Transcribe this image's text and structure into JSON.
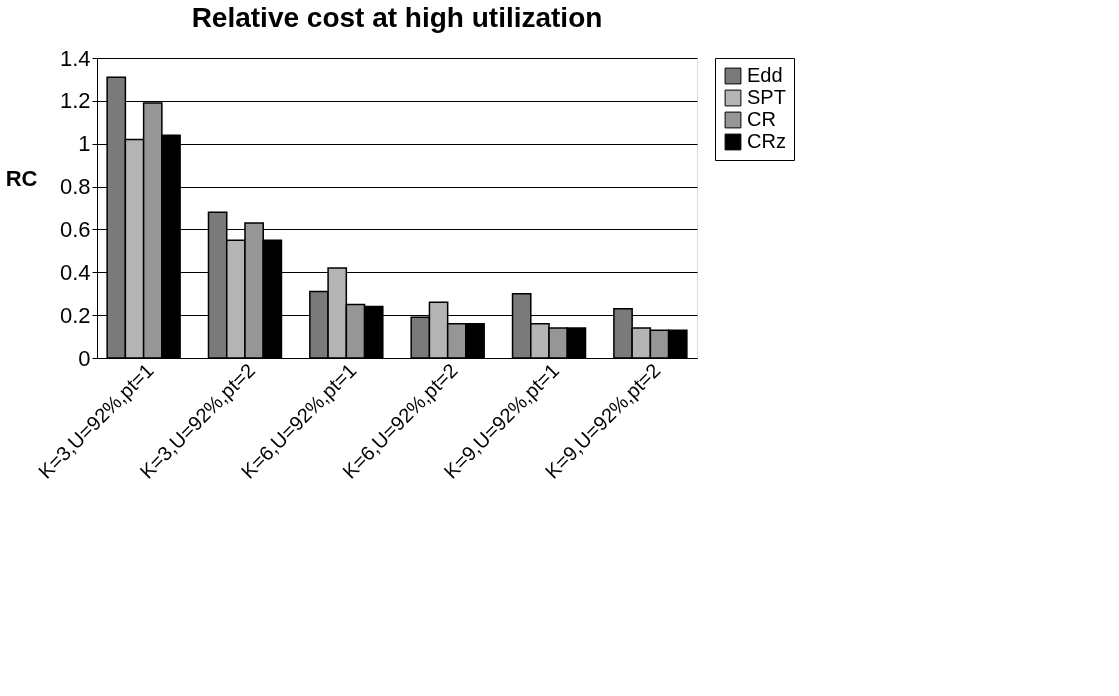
{
  "chart_data": {
    "type": "bar",
    "title": "Relative cost at high utilization",
    "ylabel": "RC",
    "categories": [
      "K=3,U=92%,pt=1",
      "K=3,U=92%,pt=2",
      "K=6,U=92%,pt=1",
      "K=6,U=92%,pt=2",
      "K=9,U=92%,pt=1",
      "K=9,U=92%,pt=2"
    ],
    "series": [
      {
        "name": "Edd",
        "color": "#7a7a7a",
        "values": [
          1.31,
          0.68,
          0.31,
          0.19,
          0.3,
          0.23
        ]
      },
      {
        "name": "SPT",
        "color": "#b4b4b4",
        "values": [
          1.02,
          0.55,
          0.42,
          0.26,
          0.16,
          0.14
        ]
      },
      {
        "name": "CR",
        "color": "#969696",
        "values": [
          1.19,
          0.63,
          0.25,
          0.16,
          0.14,
          0.13
        ]
      },
      {
        "name": "CRz",
        "color": "#000000",
        "values": [
          1.04,
          0.55,
          0.24,
          0.16,
          0.14,
          0.13
        ]
      }
    ],
    "ylim": [
      0,
      1.4
    ],
    "yticks": [
      0,
      0.2,
      0.4,
      0.6,
      0.8,
      1,
      1.2,
      1.4
    ],
    "grid": "y",
    "legend": "right"
  }
}
